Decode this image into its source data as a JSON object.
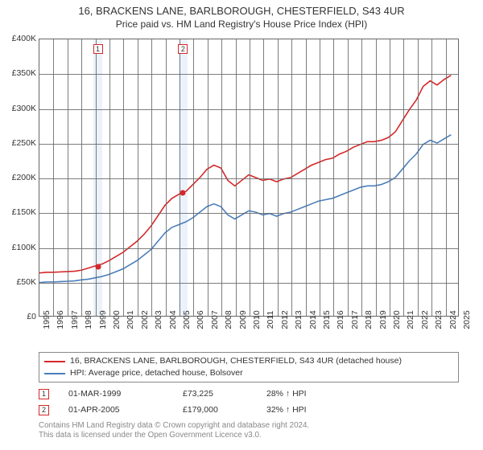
{
  "chart": {
    "type": "line",
    "title_line1": "16, BRACKENS LANE, BARLBOROUGH, CHESTERFIELD, S43 4UR",
    "title_line2": "Price paid vs. HM Land Registry's House Price Index (HPI)",
    "title_fontsize": 13,
    "subtitle_fontsize": 12,
    "background_color": "#ffffff",
    "grid_color": "#666666",
    "currency_prefix": "£",
    "x": {
      "min": 1995,
      "max": 2025,
      "tick_step": 1,
      "ticks": [
        "1995",
        "1996",
        "1997",
        "1998",
        "1999",
        "2000",
        "2001",
        "2002",
        "2003",
        "2004",
        "2005",
        "2006",
        "2007",
        "2008",
        "2009",
        "2010",
        "2011",
        "2012",
        "2013",
        "2014",
        "2015",
        "2016",
        "2017",
        "2018",
        "2019",
        "2020",
        "2021",
        "2022",
        "2023",
        "2024",
        "2025"
      ],
      "label_fontsize": 10.5,
      "label_rotation_deg": -90
    },
    "y": {
      "min": 0,
      "max": 400000,
      "tick_step": 50000,
      "ticks": [
        "£0",
        "£50K",
        "£100K",
        "£150K",
        "£200K",
        "£250K",
        "£300K",
        "£350K",
        "£400K"
      ],
      "label_fontsize": 10.5
    },
    "series": [
      {
        "id": "property",
        "label": "16, BRACKENS LANE, BARLBOROUGH, CHESTERFIELD, S43 4UR (detached house)",
        "color": "#d62728",
        "line_width": 1.6,
        "points": [
          [
            1995.0,
            62000
          ],
          [
            1995.5,
            63000
          ],
          [
            1996.0,
            63000
          ],
          [
            1996.5,
            63500
          ],
          [
            1997.0,
            64000
          ],
          [
            1997.5,
            64500
          ],
          [
            1998.0,
            66000
          ],
          [
            1998.5,
            69000
          ],
          [
            1999.17,
            73225
          ],
          [
            1999.5,
            75000
          ],
          [
            2000.0,
            80000
          ],
          [
            2000.5,
            86000
          ],
          [
            2001.0,
            92000
          ],
          [
            2001.5,
            100000
          ],
          [
            2002.0,
            108000
          ],
          [
            2002.5,
            118000
          ],
          [
            2003.0,
            130000
          ],
          [
            2003.5,
            145000
          ],
          [
            2004.0,
            160000
          ],
          [
            2004.5,
            170000
          ],
          [
            2005.0,
            176000
          ],
          [
            2005.25,
            179000
          ],
          [
            2005.5,
            180000
          ],
          [
            2006.0,
            190000
          ],
          [
            2006.5,
            200000
          ],
          [
            2007.0,
            212000
          ],
          [
            2007.5,
            218000
          ],
          [
            2008.0,
            214000
          ],
          [
            2008.5,
            196000
          ],
          [
            2009.0,
            188000
          ],
          [
            2009.5,
            196000
          ],
          [
            2010.0,
            204000
          ],
          [
            2010.5,
            200000
          ],
          [
            2011.0,
            196000
          ],
          [
            2011.5,
            198000
          ],
          [
            2012.0,
            194000
          ],
          [
            2012.5,
            198000
          ],
          [
            2013.0,
            200000
          ],
          [
            2013.5,
            206000
          ],
          [
            2014.0,
            212000
          ],
          [
            2014.5,
            218000
          ],
          [
            2015.0,
            222000
          ],
          [
            2015.5,
            226000
          ],
          [
            2016.0,
            228000
          ],
          [
            2016.5,
            234000
          ],
          [
            2017.0,
            238000
          ],
          [
            2017.5,
            244000
          ],
          [
            2018.0,
            248000
          ],
          [
            2018.5,
            252000
          ],
          [
            2019.0,
            252000
          ],
          [
            2019.5,
            254000
          ],
          [
            2020.0,
            258000
          ],
          [
            2020.5,
            266000
          ],
          [
            2021.0,
            282000
          ],
          [
            2021.5,
            298000
          ],
          [
            2022.0,
            312000
          ],
          [
            2022.5,
            332000
          ],
          [
            2023.0,
            340000
          ],
          [
            2023.5,
            334000
          ],
          [
            2024.0,
            342000
          ],
          [
            2024.5,
            348000
          ]
        ]
      },
      {
        "id": "hpi",
        "label": "HPI: Average price, detached house, Bolsover",
        "color": "#4a7ebb",
        "line_width": 1.6,
        "points": [
          [
            1995.0,
            48000
          ],
          [
            1995.5,
            49000
          ],
          [
            1996.0,
            49000
          ],
          [
            1996.5,
            49500
          ],
          [
            1997.0,
            50000
          ],
          [
            1997.5,
            50500
          ],
          [
            1998.0,
            52000
          ],
          [
            1998.5,
            53000
          ],
          [
            1999.0,
            55000
          ],
          [
            1999.5,
            57000
          ],
          [
            2000.0,
            60000
          ],
          [
            2000.5,
            64000
          ],
          [
            2001.0,
            68000
          ],
          [
            2001.5,
            74000
          ],
          [
            2002.0,
            80000
          ],
          [
            2002.5,
            88000
          ],
          [
            2003.0,
            96000
          ],
          [
            2003.5,
            108000
          ],
          [
            2004.0,
            120000
          ],
          [
            2004.5,
            128000
          ],
          [
            2005.0,
            132000
          ],
          [
            2005.5,
            136000
          ],
          [
            2006.0,
            142000
          ],
          [
            2006.5,
            150000
          ],
          [
            2007.0,
            158000
          ],
          [
            2007.5,
            162000
          ],
          [
            2008.0,
            158000
          ],
          [
            2008.5,
            146000
          ],
          [
            2009.0,
            140000
          ],
          [
            2009.5,
            146000
          ],
          [
            2010.0,
            152000
          ],
          [
            2010.5,
            150000
          ],
          [
            2011.0,
            146000
          ],
          [
            2011.5,
            148000
          ],
          [
            2012.0,
            144000
          ],
          [
            2012.5,
            148000
          ],
          [
            2013.0,
            150000
          ],
          [
            2013.5,
            154000
          ],
          [
            2014.0,
            158000
          ],
          [
            2014.5,
            162000
          ],
          [
            2015.0,
            166000
          ],
          [
            2015.5,
            168000
          ],
          [
            2016.0,
            170000
          ],
          [
            2016.5,
            174000
          ],
          [
            2017.0,
            178000
          ],
          [
            2017.5,
            182000
          ],
          [
            2018.0,
            186000
          ],
          [
            2018.5,
            188000
          ],
          [
            2019.0,
            188000
          ],
          [
            2019.5,
            190000
          ],
          [
            2020.0,
            194000
          ],
          [
            2020.5,
            200000
          ],
          [
            2021.0,
            212000
          ],
          [
            2021.5,
            224000
          ],
          [
            2022.0,
            234000
          ],
          [
            2022.5,
            248000
          ],
          [
            2023.0,
            254000
          ],
          [
            2023.5,
            250000
          ],
          [
            2024.0,
            256000
          ],
          [
            2024.5,
            262000
          ]
        ]
      }
    ],
    "sale_markers": [
      {
        "n": "1",
        "year": 1999.17,
        "price": 73225,
        "band_width_years": 0.6,
        "date": "01-MAR-1999",
        "price_label": "£73,225",
        "pct_label": "28% ↑ HPI"
      },
      {
        "n": "2",
        "year": 2005.25,
        "price": 179000,
        "band_width_years": 0.6,
        "date": "01-APR-2005",
        "price_label": "£179,000",
        "pct_label": "32% ↑ HPI"
      }
    ],
    "shade_color": "rgba(70,130,200,0.10)",
    "marker_border_color": "#d62728",
    "marker_fill_color": "#ffffff",
    "dot_color": "#d62728",
    "legend_border_color": "#888888"
  },
  "footer": {
    "line1": "Contains HM Land Registry data © Crown copyright and database right 2024.",
    "line2": "This data is licensed under the Open Government Licence v3.0.",
    "color": "#888888",
    "fontsize": 9.8
  }
}
